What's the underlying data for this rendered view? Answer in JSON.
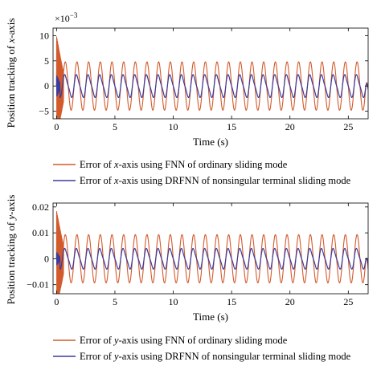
{
  "chart_data": [
    {
      "type": "line",
      "xlabel": "Time (s)",
      "ylabel_parts": [
        "Position tracking of ",
        "x",
        "-axis"
      ],
      "exponent_label": "×10",
      "exponent_power": "−3",
      "xlim": [
        -0.3,
        26.7
      ],
      "ylim": [
        -6.5,
        11.5
      ],
      "x_ticks": [
        0,
        5,
        10,
        15,
        20,
        25
      ],
      "y_ticks": [
        {
          "value": 10,
          "label": "10"
        },
        {
          "value": 5,
          "label": "5"
        },
        {
          "value": 0,
          "label": "0"
        },
        {
          "value": -5,
          "label": "−5"
        }
      ],
      "legend_placement": "below",
      "grid": false,
      "series": [
        {
          "name_parts": [
            "Error of ",
            "x",
            "-axis using FNN of ordinary sliding mode"
          ],
          "color": "#d35a2b",
          "amplitude": 4.8,
          "period": 1.0,
          "phase": 0.5,
          "initial_transient": {
            "until": 0.6,
            "amplitude": 11.5
          },
          "end_value": -0.8
        },
        {
          "name_parts": [
            "Error of ",
            "x",
            "-axis using DRFNN of nonsingular terminal sliding mode"
          ],
          "color": "#3c3c9e",
          "amplitude": 2.1,
          "period": 1.0,
          "phase": 0.5,
          "initial_transient": {
            "until": 0.3,
            "amplitude": 2.5
          },
          "end_value": -0.5
        }
      ]
    },
    {
      "type": "line",
      "xlabel": "Time (s)",
      "ylabel_parts": [
        "Position tracking of ",
        "y",
        "-axis"
      ],
      "xlim": [
        -0.3,
        26.7
      ],
      "ylim": [
        -0.0135,
        0.0215
      ],
      "x_ticks": [
        0,
        5,
        10,
        15,
        20,
        25
      ],
      "y_ticks": [
        {
          "value": 0.02,
          "label": "0.02"
        },
        {
          "value": 0.01,
          "label": "0.01"
        },
        {
          "value": 0,
          "label": "0"
        },
        {
          "value": -0.01,
          "label": "−0.01"
        }
      ],
      "legend_placement": "below",
      "grid": false,
      "series": [
        {
          "name_parts": [
            "Error of ",
            "y",
            "-axis using FNN of ordinary sliding mode"
          ],
          "color": "#d35a2b",
          "amplitude": 0.0093,
          "period": 1.0,
          "phase": 0.5,
          "initial_transient": {
            "until": 0.6,
            "amplitude": 0.0215
          },
          "end_value": -0.004
        },
        {
          "name_parts": [
            "Error of ",
            "y",
            "-axis using DRFNN of nonsingular terminal sliding mode"
          ],
          "color": "#3c3c9e",
          "amplitude": 0.0037,
          "period": 1.0,
          "phase": 0.5,
          "initial_transient": {
            "until": 0.3,
            "amplitude": 0.003
          },
          "end_value": -0.002
        }
      ]
    }
  ]
}
